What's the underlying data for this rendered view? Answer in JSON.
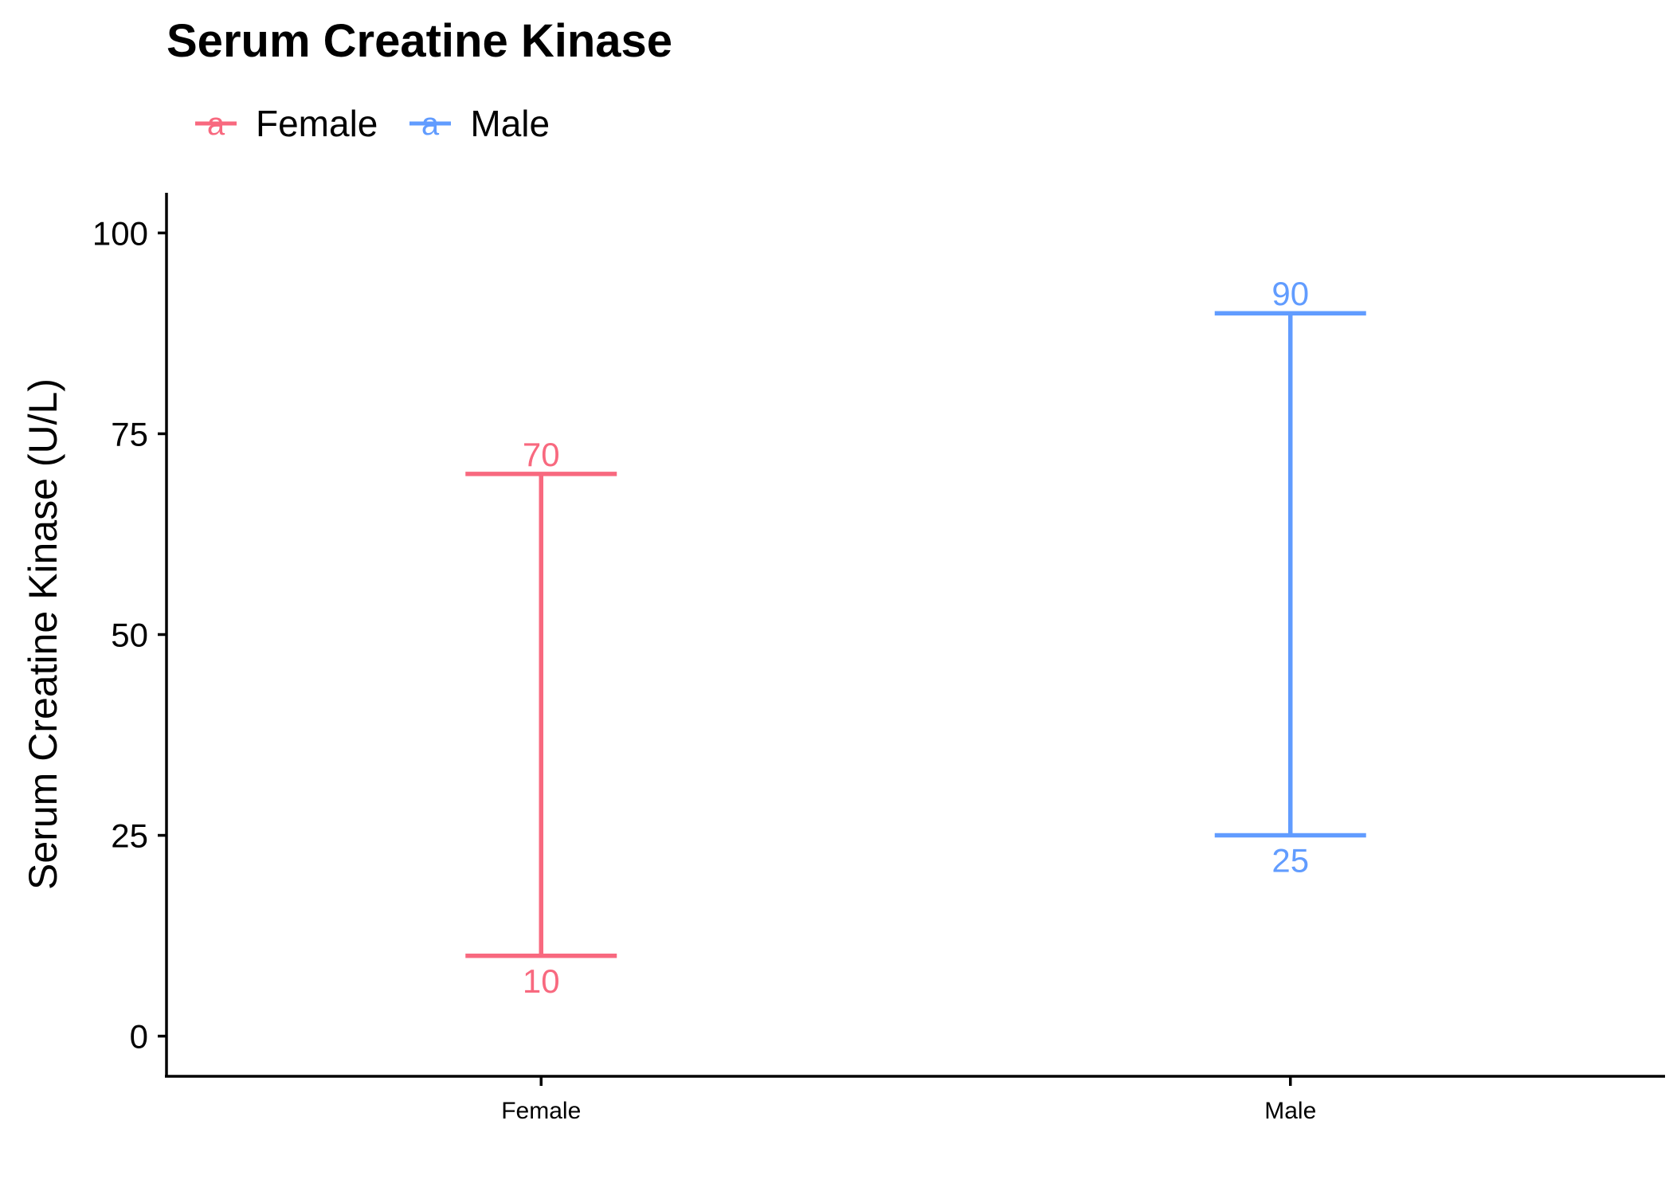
{
  "chart_data": {
    "type": "range",
    "title": "Serum Creatine Kinase",
    "xlabel": "",
    "ylabel": "Serum Creatine Kinase (U/L)",
    "categories": [
      "Female",
      "Male"
    ],
    "ylim": [
      -5,
      105
    ],
    "yticks": [
      0,
      25,
      50,
      75,
      100
    ],
    "grid": false,
    "legend_position": "top-left",
    "series": [
      {
        "name": "Female",
        "category": "Female",
        "low": 10,
        "high": 70,
        "low_label": "10",
        "high_label": "70",
        "color": "#F8697F"
      },
      {
        "name": "Male",
        "category": "Male",
        "low": 25,
        "high": 90,
        "low_label": "25",
        "high_label": "90",
        "color": "#619CFF"
      }
    ]
  }
}
